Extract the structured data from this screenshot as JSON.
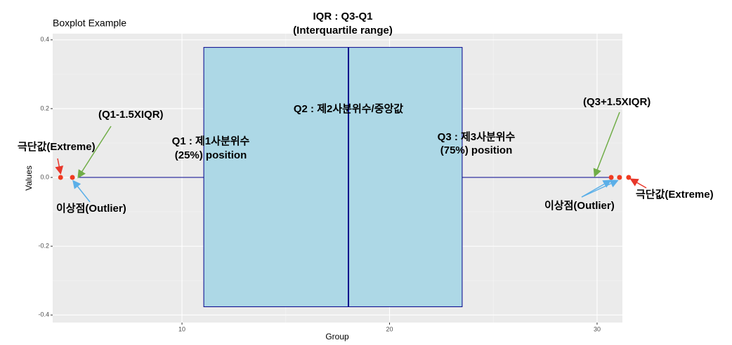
{
  "chart_data": {
    "type": "boxplot",
    "title": "Boxplot Example",
    "x_label": "Group",
    "y_label": "Values",
    "xlim": [
      3.77,
      31.22
    ],
    "ylim": [
      -0.422,
      0.418
    ],
    "xticks": [
      10,
      20,
      30
    ],
    "yticks": [
      0.4,
      0.2,
      {
        "value": 0,
        "label": "0.0"
      },
      -0.2,
      -0.4
    ],
    "grid": true,
    "boxes": [
      {
        "q1": 11.05,
        "median": 18.02,
        "q3": 23.5,
        "whisker_low": 5.03,
        "whisker_high": 30.7,
        "y": 0,
        "y_low": -0.376,
        "y_high": 0.378,
        "color": "#add8e6",
        "line_color": "#00008b"
      }
    ],
    "outliers": {
      "x": [
        4.15,
        4.72,
        30.68,
        31.08,
        31.52
      ],
      "y": [
        0,
        0,
        0,
        0,
        0
      ],
      "color": "#f03b20"
    },
    "annotations": [
      "IQR : Q3-Q1",
      "(Interquartile range)",
      "Q2 : 제2사분위수/중앙값",
      "Q1 : 제1사분위수",
      "(25%) position",
      "Q3 : 제3사분위수",
      "(75%) position",
      "(Q1-1.5XIQR)",
      "(Q3+1.5XIQR)",
      "극단값(Extreme)",
      "이상점(Outlier)",
      "이상점(Outlier)",
      "극단값(Extreme)"
    ]
  }
}
